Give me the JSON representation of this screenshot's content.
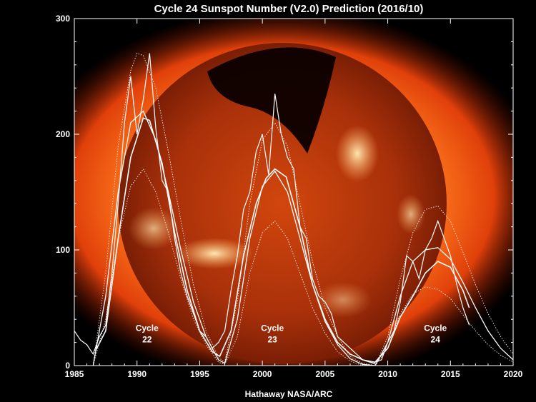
{
  "chart_data": {
    "type": "line",
    "title": "Cycle 24 Sunspot Number (V2.0) Prediction (2016/10)",
    "xlim": [
      1985,
      2020
    ],
    "ylim": [
      0,
      300
    ],
    "x_ticks": [
      "1985",
      "1990",
      "1995",
      "2000",
      "2005",
      "2010",
      "2015",
      "2020"
    ],
    "y_ticks": [
      "0",
      "100",
      "200",
      "300"
    ],
    "grid": false,
    "credit": "Hathaway NASA/ARC",
    "cycle_labels": [
      {
        "name": "Cycle",
        "number": "22",
        "x": 1990.8,
        "y": 25
      },
      {
        "name": "Cycle",
        "number": "23",
        "x": 2000.8,
        "y": 25
      },
      {
        "name": "Cycle",
        "number": "24",
        "x": 2013.8,
        "y": 25
      }
    ],
    "background": "solar X-ray image (orange sun disk)",
    "series": [
      {
        "kind": "monthly-observed",
        "x": [
          1985.0,
          1985.5,
          1986.0,
          1986.5,
          1987.0,
          1987.5,
          1988.0,
          1988.5,
          1989.0,
          1989.5,
          1990.0,
          1990.5,
          1991.0,
          1991.5,
          1992.0,
          1992.5,
          1993.0,
          1993.5,
          1994.0,
          1994.5,
          1995.0,
          1995.5,
          1996.0,
          1996.5,
          1997.0,
          1997.5,
          1998.0,
          1998.5,
          1999.0,
          1999.5,
          2000.0,
          2000.5,
          2001.0,
          2001.5,
          2002.0,
          2002.5,
          2003.0,
          2003.5,
          2004.0,
          2004.5,
          2005.0,
          2005.5,
          2006.0,
          2006.5,
          2007.0,
          2007.5,
          2008.0,
          2008.5,
          2009.0,
          2009.5,
          2010.0,
          2010.5,
          2011.0,
          2011.5,
          2012.0,
          2012.5,
          2013.0,
          2013.5,
          2014.0,
          2014.5,
          2015.0,
          2015.5,
          2016.0,
          2016.5
        ],
        "y": [
          30,
          22,
          18,
          10,
          25,
          35,
          80,
          140,
          210,
          250,
          200,
          230,
          270,
          205,
          160,
          150,
          110,
          80,
          60,
          45,
          30,
          25,
          15,
          20,
          30,
          65,
          95,
          135,
          150,
          185,
          200,
          165,
          235,
          200,
          180,
          170,
          120,
          110,
          75,
          60,
          55,
          45,
          25,
          20,
          15,
          10,
          5,
          4,
          3,
          5,
          20,
          30,
          55,
          95,
          90,
          75,
          100,
          110,
          125,
          110,
          95,
          70,
          50,
          35
        ]
      },
      {
        "kind": "smoothed",
        "x": [
          1986.7,
          1987.5,
          1988.5,
          1989.5,
          1990.5,
          1991.0,
          1992.0,
          1993.0,
          1994.0,
          1995.0,
          1996.0,
          1996.6,
          1997.5,
          1998.5,
          1999.5,
          2000.3,
          2001.0,
          2001.9,
          2003.0,
          2004.0,
          2005.0,
          2006.0,
          2007.0,
          2008.0,
          2008.9,
          2010.0,
          2011.0,
          2012.0,
          2013.0,
          2014.0,
          2015.0,
          2016.0,
          2016.5
        ],
        "y": [
          13,
          30,
          110,
          180,
          214,
          212,
          175,
          115,
          65,
          30,
          12,
          8,
          30,
          95,
          140,
          162,
          170,
          163,
          120,
          70,
          40,
          20,
          10,
          5,
          2,
          15,
          42,
          60,
          80,
          90,
          85,
          65,
          50
        ]
      },
      {
        "kind": "prediction",
        "x": [
          1986.5,
          1987.5,
          1988.5,
          1989.5,
          1990.5,
          1991.5,
          1992.5,
          1993.5,
          1994.5,
          1995.5,
          1996.5,
          1997.0,
          1998.0,
          1999.0,
          2000.0,
          2001.0,
          2002.0,
          2003.0,
          2004.0,
          2005.0,
          2006.0,
          2007.0,
          2008.0,
          2009.0,
          2010.0,
          2011.0,
          2012.0,
          2013.0,
          2014.0,
          2015.0,
          2016.0,
          2017.0,
          2018.0,
          2019.0,
          2020.0
        ],
        "y": [
          0,
          60,
          150,
          210,
          220,
          195,
          150,
          100,
          55,
          25,
          5,
          2,
          40,
          110,
          155,
          168,
          150,
          110,
          70,
          38,
          18,
          6,
          1,
          0,
          20,
          60,
          90,
          100,
          102,
          92,
          72,
          50,
          30,
          15,
          5
        ]
      },
      {
        "kind": "prediction-upper",
        "x": [
          1986.5,
          1987.5,
          1988.5,
          1989.5,
          1990.0,
          1990.5,
          1991.5,
          1992.5,
          1993.5,
          1994.5,
          1995.5,
          1996.5,
          1997.0,
          1998.0,
          1999.0,
          2000.0,
          2001.0,
          2002.0,
          2003.0,
          2004.0,
          2005.0,
          2006.0,
          2007.0,
          2008.0,
          2009.0,
          2010.0,
          2011.0,
          2012.0,
          2013.0,
          2014.0,
          2015.0,
          2016.0,
          2017.0,
          2018.0,
          2019.0,
          2020.0
        ],
        "y": [
          0,
          80,
          190,
          255,
          270,
          268,
          240,
          185,
          125,
          70,
          30,
          7,
          3,
          55,
          140,
          195,
          210,
          190,
          140,
          90,
          50,
          25,
          8,
          2,
          0,
          25,
          75,
          115,
          135,
          138,
          125,
          98,
          70,
          45,
          25,
          10
        ]
      },
      {
        "kind": "prediction-lower",
        "x": [
          1986.5,
          1987.5,
          1988.5,
          1989.5,
          1990.5,
          1991.5,
          1992.5,
          1993.5,
          1994.5,
          1995.5,
          1996.5,
          1997.0,
          1998.0,
          1999.0,
          2000.0,
          2001.0,
          2002.0,
          2003.0,
          2004.0,
          2005.0,
          2006.0,
          2007.0,
          2008.0,
          2009.0,
          2010.0,
          2011.0,
          2012.0,
          2013.0,
          2014.0,
          2015.0,
          2016.0,
          2017.0,
          2018.0,
          2019.0,
          2020.0
        ],
        "y": [
          0,
          40,
          110,
          155,
          170,
          150,
          115,
          75,
          40,
          18,
          3,
          1,
          25,
          80,
          115,
          125,
          110,
          80,
          50,
          28,
          12,
          4,
          0,
          0,
          15,
          45,
          62,
          68,
          66,
          58,
          44,
          30,
          18,
          9,
          3
        ]
      }
    ]
  }
}
